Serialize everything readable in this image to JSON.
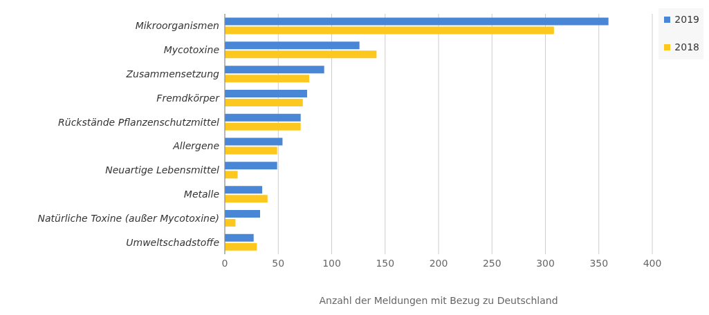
{
  "chart_data": {
    "type": "bar",
    "orientation": "horizontal",
    "xlabel": "Anzahl der Meldungen mit Bezug zu Deutschland",
    "categories": [
      "Mikroorganismen",
      "Mycotoxine",
      "Zusammensetzung",
      "Fremdkörper",
      "Rückstände Pflanzenschutzmittel",
      "Allergene",
      "Neuartige Lebensmittel",
      "Metalle",
      "Natürliche Toxine (außer Mycotoxine)",
      "Umweltschadstoffe"
    ],
    "series": [
      {
        "name": "2019",
        "color": "#4a86d6",
        "values": [
          359,
          126,
          93,
          77,
          71,
          54,
          49,
          35,
          33,
          27
        ]
      },
      {
        "name": "2018",
        "color": "#fcc71e",
        "values": [
          308,
          142,
          79,
          73,
          71,
          49,
          12,
          40,
          10,
          30
        ]
      }
    ],
    "xlim": [
      0,
      400
    ],
    "xticks": [
      0,
      50,
      100,
      150,
      200,
      250,
      300,
      350,
      400
    ],
    "grid": "x",
    "legend": "top right"
  }
}
